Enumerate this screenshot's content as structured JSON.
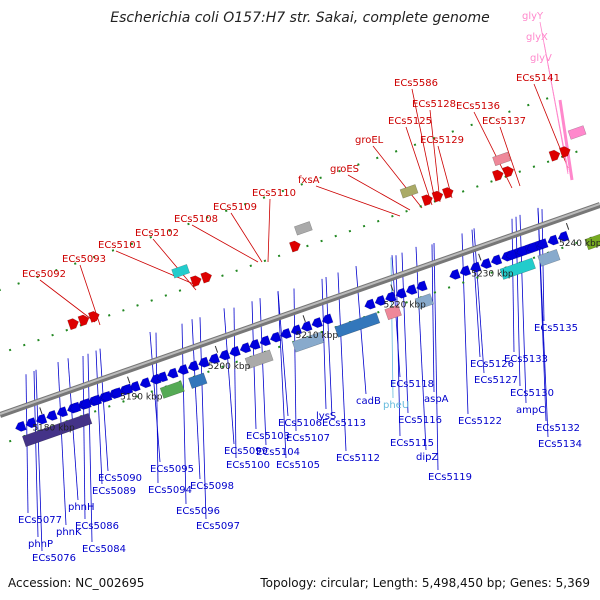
{
  "header": {
    "title": "Escherichia coli O157:H7 str. Sakai, complete genome"
  },
  "footer": {
    "accession": "Accession: NC_002695",
    "topology": "Topology: circular; Length: 5,498,450 bp; Genes: 5,369"
  },
  "colors": {
    "forward_cds": "#dd0000",
    "reverse_cds": "#0000dd",
    "trna": "#ff88cc",
    "rrna": "#66bbdd",
    "backbone": "#888888"
  },
  "scale_ticks": [
    {
      "label": "5180 kbp"
    },
    {
      "label": "5190 kbp"
    },
    {
      "label": "5200 kbp"
    },
    {
      "label": "5210 kbp"
    },
    {
      "label": "5220 kbp"
    },
    {
      "label": "5230 kbp"
    },
    {
      "label": "5240 kbp"
    }
  ],
  "labels": {
    "top": [
      {
        "text": "ECs5092",
        "color": "#cc0000"
      },
      {
        "text": "ECs5093",
        "color": "#cc0000"
      },
      {
        "text": "ECs5101",
        "color": "#cc0000"
      },
      {
        "text": "ECs5102",
        "color": "#cc0000"
      },
      {
        "text": "ECs5108",
        "color": "#cc0000"
      },
      {
        "text": "ECs5109",
        "color": "#cc0000"
      },
      {
        "text": "ECs5110",
        "color": "#cc0000"
      },
      {
        "text": "fxsA",
        "color": "#cc0000"
      },
      {
        "text": "groES",
        "color": "#cc0000"
      },
      {
        "text": "groEL",
        "color": "#cc0000"
      },
      {
        "text": "ECs5125",
        "color": "#cc0000"
      },
      {
        "text": "ECs5128",
        "color": "#cc0000"
      },
      {
        "text": "ECs5586",
        "color": "#cc0000"
      },
      {
        "text": "ECs5129",
        "color": "#cc0000"
      },
      {
        "text": "ECs5136",
        "color": "#cc0000"
      },
      {
        "text": "ECs5137",
        "color": "#cc0000"
      },
      {
        "text": "ECs5141",
        "color": "#cc0000"
      },
      {
        "text": "glyY",
        "color": "#ff88cc"
      },
      {
        "text": "glyX",
        "color": "#ff88cc"
      },
      {
        "text": "glyV",
        "color": "#ff88cc"
      }
    ],
    "bottom": [
      {
        "text": "ECs5077",
        "color": "#0000cc"
      },
      {
        "text": "phnP",
        "color": "#0000cc"
      },
      {
        "text": "ECs5076",
        "color": "#0000cc"
      },
      {
        "text": "phnK",
        "color": "#0000cc"
      },
      {
        "text": "phnH",
        "color": "#0000cc"
      },
      {
        "text": "ECs5086",
        "color": "#0000cc"
      },
      {
        "text": "ECs5084",
        "color": "#0000cc"
      },
      {
        "text": "ECs5089",
        "color": "#0000cc"
      },
      {
        "text": "ECs5090",
        "color": "#0000cc"
      },
      {
        "text": "ECs5095",
        "color": "#0000cc"
      },
      {
        "text": "ECs5094",
        "color": "#0000cc"
      },
      {
        "text": "ECs5096",
        "color": "#0000cc"
      },
      {
        "text": "ECs5097",
        "color": "#0000cc"
      },
      {
        "text": "ECs5098",
        "color": "#0000cc"
      },
      {
        "text": "ECs5099",
        "color": "#0000cc"
      },
      {
        "text": "ECs5100",
        "color": "#0000cc"
      },
      {
        "text": "ECs5103",
        "color": "#0000cc"
      },
      {
        "text": "ECs5104",
        "color": "#0000cc"
      },
      {
        "text": "ECs5105",
        "color": "#0000cc"
      },
      {
        "text": "ECs5106",
        "color": "#0000cc"
      },
      {
        "text": "ECs5107",
        "color": "#0000cc"
      },
      {
        "text": "lysS",
        "color": "#0000cc"
      },
      {
        "text": "ECs5113",
        "color": "#0000cc"
      },
      {
        "text": "ECs5112",
        "color": "#0000cc"
      },
      {
        "text": "cadB",
        "color": "#0000cc"
      },
      {
        "text": "pheU",
        "color": "#66bbdd"
      },
      {
        "text": "ECs5115",
        "color": "#0000cc"
      },
      {
        "text": "ECs5116",
        "color": "#0000cc"
      },
      {
        "text": "ECs5118",
        "color": "#0000cc"
      },
      {
        "text": "dipZ",
        "color": "#0000cc"
      },
      {
        "text": "aspA",
        "color": "#0000cc"
      },
      {
        "text": "ECs5119",
        "color": "#0000cc"
      },
      {
        "text": "ECs5122",
        "color": "#0000cc"
      },
      {
        "text": "ECs5126",
        "color": "#0000cc"
      },
      {
        "text": "ECs5127",
        "color": "#0000cc"
      },
      {
        "text": "ECs5133",
        "color": "#0000cc"
      },
      {
        "text": "ECs5130",
        "color": "#0000cc"
      },
      {
        "text": "ampC",
        "color": "#0000cc"
      },
      {
        "text": "ECs5132",
        "color": "#0000cc"
      },
      {
        "text": "ECs5134",
        "color": "#0000cc"
      },
      {
        "text": "ECs5135",
        "color": "#0000cc"
      }
    ]
  }
}
